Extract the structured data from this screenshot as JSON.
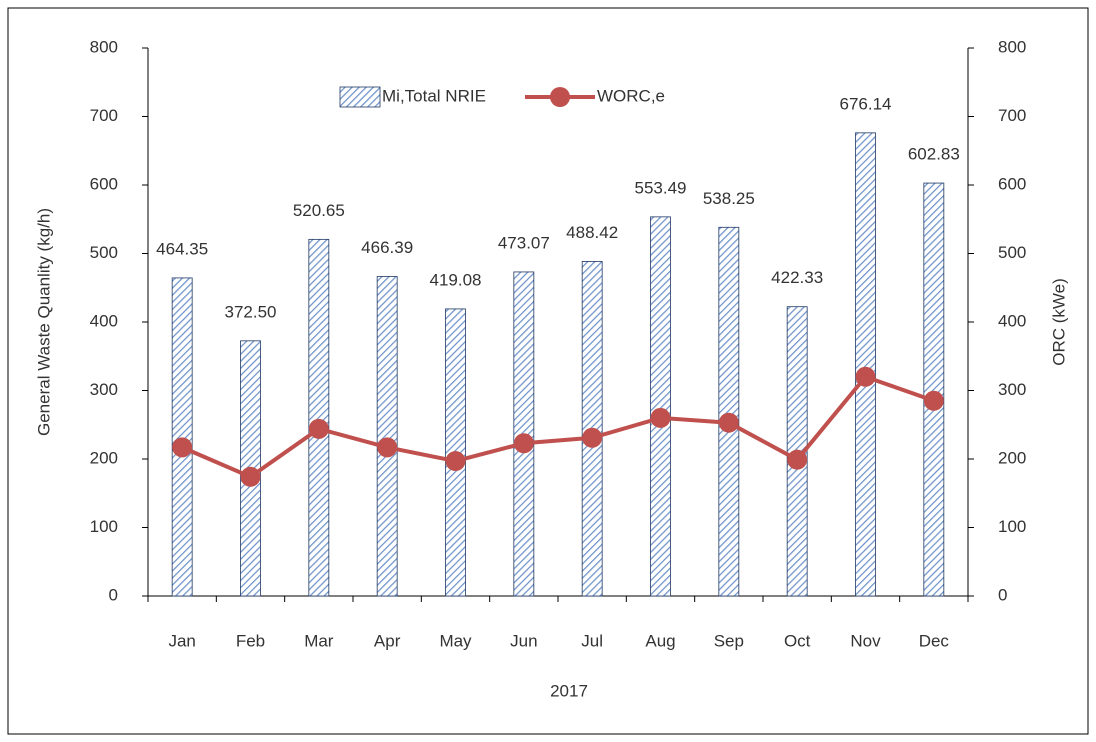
{
  "chart_data": {
    "type": "bar",
    "xlabel": "2017",
    "ylabel": "General Waste Quanlity (kg/h)",
    "y2label": "ORC (kWe)",
    "categories": [
      "Jan",
      "Feb",
      "Mar",
      "Apr",
      "May",
      "Jun",
      "Jul",
      "Aug",
      "Sep",
      "Oct",
      "Nov",
      "Dec"
    ],
    "series": [
      {
        "name": "Mi,Total NRIE",
        "type": "bar",
        "axis": "y",
        "color": "#6f93c9",
        "values": [
          464.35,
          372.5,
          520.65,
          466.39,
          419.08,
          473.07,
          488.42,
          553.49,
          538.25,
          422.33,
          676.14,
          602.83
        ],
        "value_labels": [
          "464.35",
          "372.50",
          "520.65",
          "466.39",
          "419.08",
          "473.07",
          "488.42",
          "553.49",
          "538.25",
          "422.33",
          "676.14",
          "602.83"
        ]
      },
      {
        "name": "WORC,e",
        "type": "line",
        "axis": "y2",
        "color": "#c0504d",
        "values": [
          217,
          174,
          244,
          217,
          197,
          223,
          231,
          260,
          253,
          199,
          320,
          285
        ]
      }
    ],
    "ylim": [
      0,
      800
    ],
    "yticks": [
      0,
      100,
      200,
      300,
      400,
      500,
      600,
      700,
      800
    ],
    "y2lim": [
      0,
      800
    ],
    "y2ticks": [
      0,
      100,
      200,
      300,
      400,
      500,
      600,
      700,
      800
    ],
    "legend": "top",
    "grid": false
  }
}
